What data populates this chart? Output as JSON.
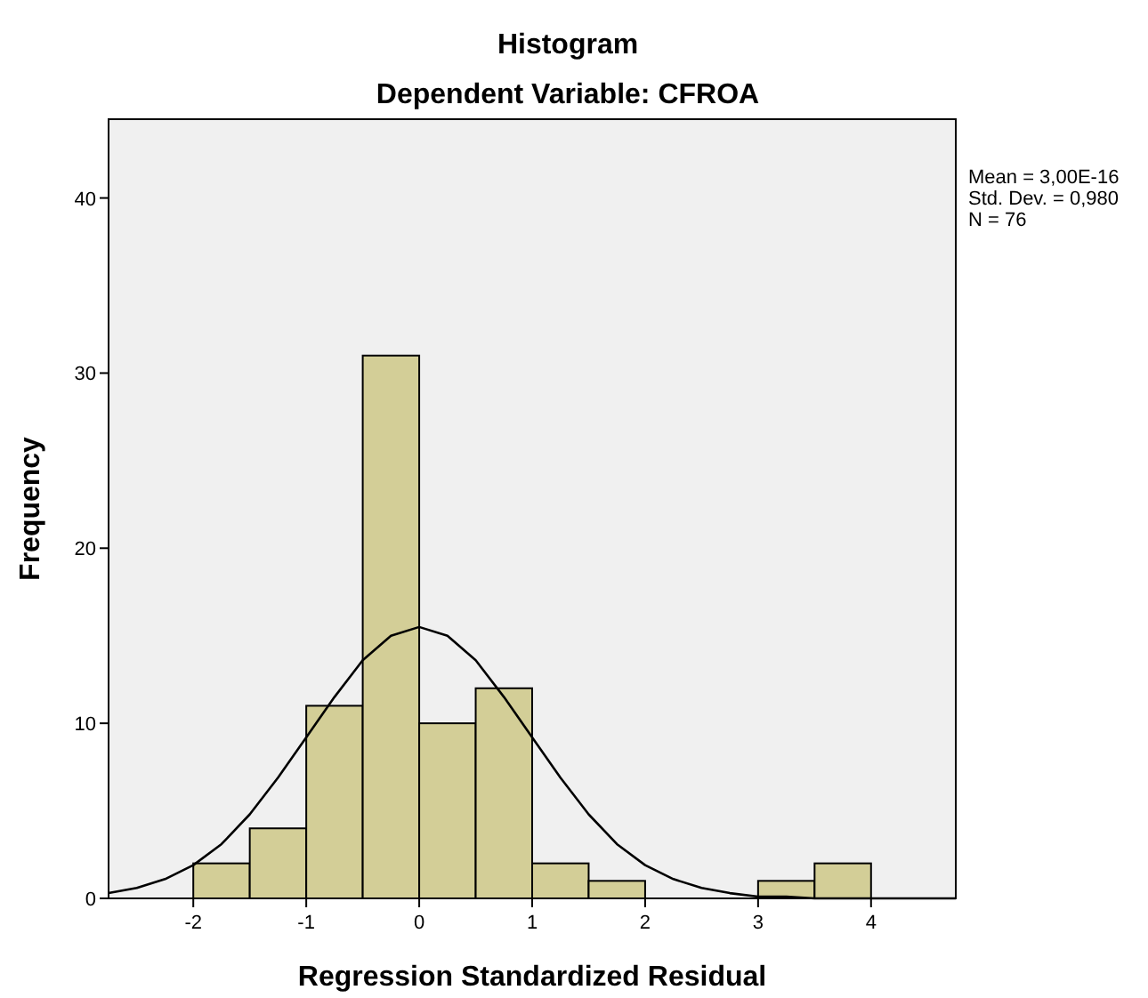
{
  "chart_data": {
    "type": "histogram",
    "title": "Histogram",
    "subtitle": "Dependent Variable: CFROA",
    "xlabel": "Regression Standardized Residual",
    "ylabel": "Frequency",
    "series": [
      {
        "color": "#d3ce97",
        "bins": [
          -2,
          -1.5,
          -1,
          -0.5,
          0,
          0.5,
          1,
          1.5,
          2,
          2.5,
          3,
          3.5,
          4
        ],
        "values": [
          2,
          4,
          11,
          31,
          10,
          12,
          2,
          1,
          0,
          0,
          1,
          2
        ]
      },
      {
        "type": "line",
        "color": "#000000",
        "x": [
          -2.75,
          -2.5,
          -2.25,
          -2,
          -1.75,
          -1.5,
          -1.25,
          -1,
          -0.75,
          -0.5,
          -0.25,
          0,
          0.25,
          0.5,
          0.75,
          1,
          1.25,
          1.5,
          1.75,
          2,
          2.25,
          2.5,
          2.75,
          3,
          3.25,
          3.5,
          4,
          4.75
        ],
        "values": [
          0.3,
          0.6,
          1.1,
          1.9,
          3.1,
          4.8,
          6.9,
          9.2,
          11.5,
          13.6,
          15,
          15.5,
          15,
          13.6,
          11.5,
          9.2,
          6.9,
          4.8,
          3.1,
          1.9,
          1.1,
          0.6,
          0.3,
          0.1,
          0.1,
          0,
          0,
          0
        ]
      }
    ],
    "xlim": [
      -2.75,
      4.75
    ],
    "xticks": [
      -2,
      -1,
      0,
      1,
      2,
      3,
      4
    ],
    "ylim": [
      0,
      44.5
    ],
    "yticks": [
      0,
      10,
      20,
      30,
      40
    ],
    "grid": false,
    "marker": "none",
    "line_style": "solid",
    "annotations": [
      "Mean = 3,00E-16",
      "Std. Dev. = 0,980",
      "N = 76"
    ]
  }
}
